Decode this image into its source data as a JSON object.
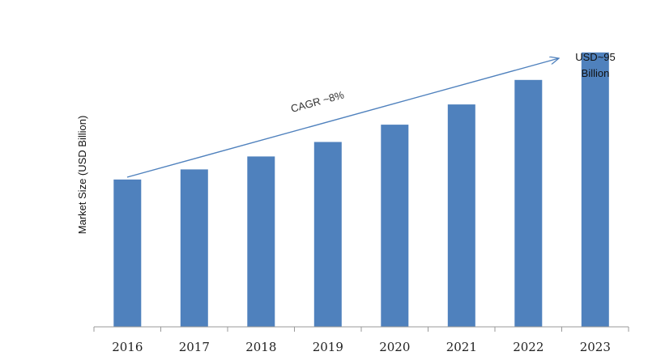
{
  "chart_data": {
    "type": "bar",
    "title": "",
    "xlabel": "",
    "ylabel": "Market Size (USD Billion)",
    "categories": [
      "2016",
      "2017",
      "2018",
      "2019",
      "2020",
      "2021",
      "2022",
      "2023"
    ],
    "values": [
      51,
      54.5,
      59,
      64,
      70,
      77,
      85.5,
      95
    ],
    "ylim": [
      0,
      107
    ],
    "grid": false,
    "bar_color": "#4f81bd",
    "annotations": {
      "trend_label": "CAGR ~8%",
      "end_label_line1": "USD~95",
      "end_label_line2": "Billion"
    }
  }
}
